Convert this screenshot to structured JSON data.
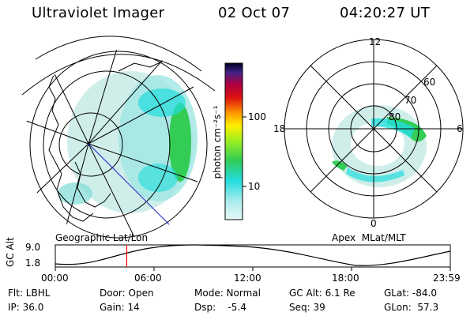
{
  "header": {
    "title": "Ultraviolet Imager",
    "date": "02 Oct 07",
    "time": "04:20:27 UT"
  },
  "colorbar": {
    "label": "photon cm⁻²s⁻¹",
    "ticks": [
      "100",
      "10"
    ]
  },
  "left_panel": {
    "caption": "Geographic Lat/Lon"
  },
  "right_panel": {
    "caption": "Apex  MLat/MLT",
    "mlt_labels": {
      "top": "12",
      "left": "18",
      "right": "6",
      "bottom": "0"
    },
    "lat_labels": [
      "60",
      "70",
      "80"
    ]
  },
  "altitude_plot": {
    "ylabel": "GC Alt",
    "y_ticks": [
      "9.0",
      "1.8"
    ],
    "x_ticks": [
      "00:00",
      "06:00",
      "12:00",
      "18:00",
      "23:59"
    ],
    "current_time_hours": 4.34
  },
  "footer": {
    "filter": "Flt: LBHL",
    "ip": "IP: 36.0",
    "door": "Door: Open",
    "gain": "Gain: 14",
    "mode": "Mode: Normal",
    "dsp": "Dsp:    -5.4",
    "gc_alt": "GC Alt: 6.1 Re",
    "seq": "Seq: 39",
    "glat": "GLat: -84.0",
    "glon": "GLon:  57.3"
  },
  "colors": {
    "cyan": "#22dddd",
    "green": "#33cc55",
    "light_cyan": "#bfeeea",
    "marker": "#ff0000",
    "track": "#2222cc"
  }
}
